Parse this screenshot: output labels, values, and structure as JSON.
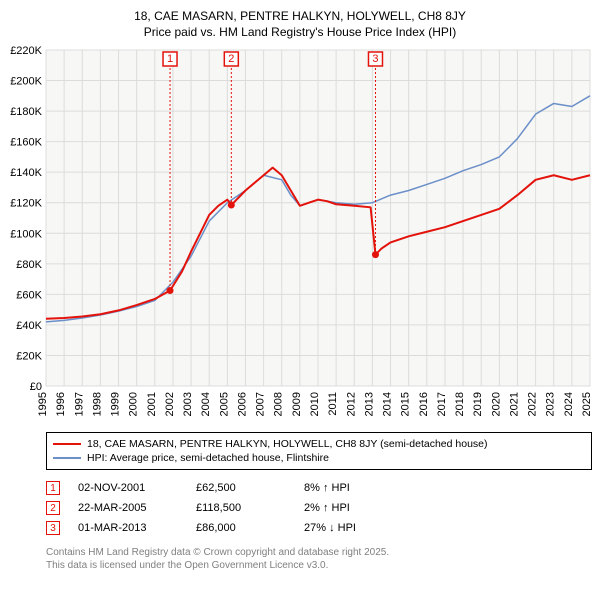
{
  "title": {
    "line1": "18, CAE MASARN, PENTRE HALKYN, HOLYWELL, CH8 8JY",
    "line2": "Price paid vs. HM Land Registry's House Price Index (HPI)"
  },
  "chart": {
    "type": "line",
    "background_color": "#ffffff",
    "plot_bg": "#f7f7f5",
    "grid_color": "#dcdcdc",
    "axis_color": "#000000",
    "x": {
      "min": 1995,
      "max": 2025,
      "ticks": [
        1995,
        1996,
        1997,
        1998,
        1999,
        2000,
        2001,
        2002,
        2003,
        2004,
        2005,
        2006,
        2007,
        2008,
        2009,
        2010,
        2011,
        2012,
        2013,
        2014,
        2015,
        2016,
        2017,
        2018,
        2019,
        2020,
        2021,
        2022,
        2023,
        2024,
        2025
      ]
    },
    "y": {
      "min": 0,
      "max": 220000,
      "tick_step": 20000,
      "ticks": [
        0,
        20000,
        40000,
        60000,
        80000,
        100000,
        120000,
        140000,
        160000,
        180000,
        200000,
        220000
      ],
      "tick_labels": [
        "£0",
        "£20K",
        "£40K",
        "£60K",
        "£80K",
        "£100K",
        "£120K",
        "£140K",
        "£160K",
        "£180K",
        "£200K",
        "£220K"
      ]
    },
    "series": [
      {
        "id": "property",
        "label": "18, CAE MASARN, PENTRE HALKYN, HOLYWELL, CH8 8JY (semi-detached house)",
        "color": "#e3120b",
        "width": 2,
        "data": [
          [
            1995,
            44000
          ],
          [
            1996,
            44500
          ],
          [
            1997,
            45500
          ],
          [
            1998,
            47000
          ],
          [
            1999,
            49500
          ],
          [
            2000,
            53000
          ],
          [
            2001,
            57000
          ],
          [
            2001.84,
            62500
          ],
          [
            2002.5,
            75000
          ],
          [
            2003,
            88000
          ],
          [
            2003.5,
            100000
          ],
          [
            2004,
            112000
          ],
          [
            2004.5,
            118000
          ],
          [
            2005,
            122000
          ],
          [
            2005.22,
            118500
          ],
          [
            2006,
            128000
          ],
          [
            2007,
            138000
          ],
          [
            2007.5,
            143000
          ],
          [
            2008,
            138000
          ],
          [
            2008.5,
            128000
          ],
          [
            2009,
            118000
          ],
          [
            2009.5,
            120000
          ],
          [
            2010,
            122000
          ],
          [
            2010.5,
            121000
          ],
          [
            2011,
            119000
          ],
          [
            2012,
            118000
          ],
          [
            2012.9,
            117000
          ],
          [
            2013.17,
            86000
          ],
          [
            2013.5,
            90000
          ],
          [
            2014,
            94000
          ],
          [
            2015,
            98000
          ],
          [
            2016,
            101000
          ],
          [
            2017,
            104000
          ],
          [
            2018,
            108000
          ],
          [
            2019,
            112000
          ],
          [
            2020,
            116000
          ],
          [
            2021,
            125000
          ],
          [
            2022,
            135000
          ],
          [
            2023,
            138000
          ],
          [
            2024,
            135000
          ],
          [
            2025,
            138000
          ]
        ]
      },
      {
        "id": "hpi",
        "label": "HPI: Average price, semi-detached house, Flintshire",
        "color": "#6b8fc9",
        "width": 1.5,
        "data": [
          [
            1995,
            42000
          ],
          [
            1996,
            43000
          ],
          [
            1997,
            44500
          ],
          [
            1998,
            46500
          ],
          [
            1999,
            49000
          ],
          [
            2000,
            52000
          ],
          [
            2001,
            56000
          ],
          [
            2002,
            68000
          ],
          [
            2003,
            85000
          ],
          [
            2004,
            108000
          ],
          [
            2005,
            120000
          ],
          [
            2006,
            128000
          ],
          [
            2007,
            138000
          ],
          [
            2008,
            135000
          ],
          [
            2008.5,
            125000
          ],
          [
            2009,
            118000
          ],
          [
            2010,
            122000
          ],
          [
            2011,
            120000
          ],
          [
            2012,
            119000
          ],
          [
            2013,
            120000
          ],
          [
            2014,
            125000
          ],
          [
            2015,
            128000
          ],
          [
            2016,
            132000
          ],
          [
            2017,
            136000
          ],
          [
            2018,
            141000
          ],
          [
            2019,
            145000
          ],
          [
            2020,
            150000
          ],
          [
            2021,
            162000
          ],
          [
            2022,
            178000
          ],
          [
            2023,
            185000
          ],
          [
            2024,
            183000
          ],
          [
            2025,
            190000
          ]
        ]
      }
    ],
    "markers": [
      {
        "num": "1",
        "x": 2001.84,
        "y": 62500,
        "color": "#e3120b"
      },
      {
        "num": "2",
        "x": 2005.22,
        "y": 118500,
        "color": "#e3120b"
      },
      {
        "num": "3",
        "x": 2013.17,
        "y": 86000,
        "color": "#e3120b"
      }
    ]
  },
  "legend": {
    "items": [
      {
        "color": "#e3120b",
        "label": "18, CAE MASARN, PENTRE HALKYN, HOLYWELL, CH8 8JY (semi-detached house)"
      },
      {
        "color": "#6b8fc9",
        "label": "HPI: Average price, semi-detached house, Flintshire"
      }
    ]
  },
  "events": [
    {
      "num": "1",
      "color": "#e3120b",
      "date": "02-NOV-2001",
      "price": "£62,500",
      "delta": "8% ↑ HPI"
    },
    {
      "num": "2",
      "color": "#e3120b",
      "date": "22-MAR-2005",
      "price": "£118,500",
      "delta": "2% ↑ HPI"
    },
    {
      "num": "3",
      "color": "#e3120b",
      "date": "01-MAR-2013",
      "price": "£86,000",
      "delta": "27% ↓ HPI"
    }
  ],
  "footer": {
    "line1": "Contains HM Land Registry data © Crown copyright and database right 2025.",
    "line2": "This data is licensed under the Open Government Licence v3.0."
  }
}
